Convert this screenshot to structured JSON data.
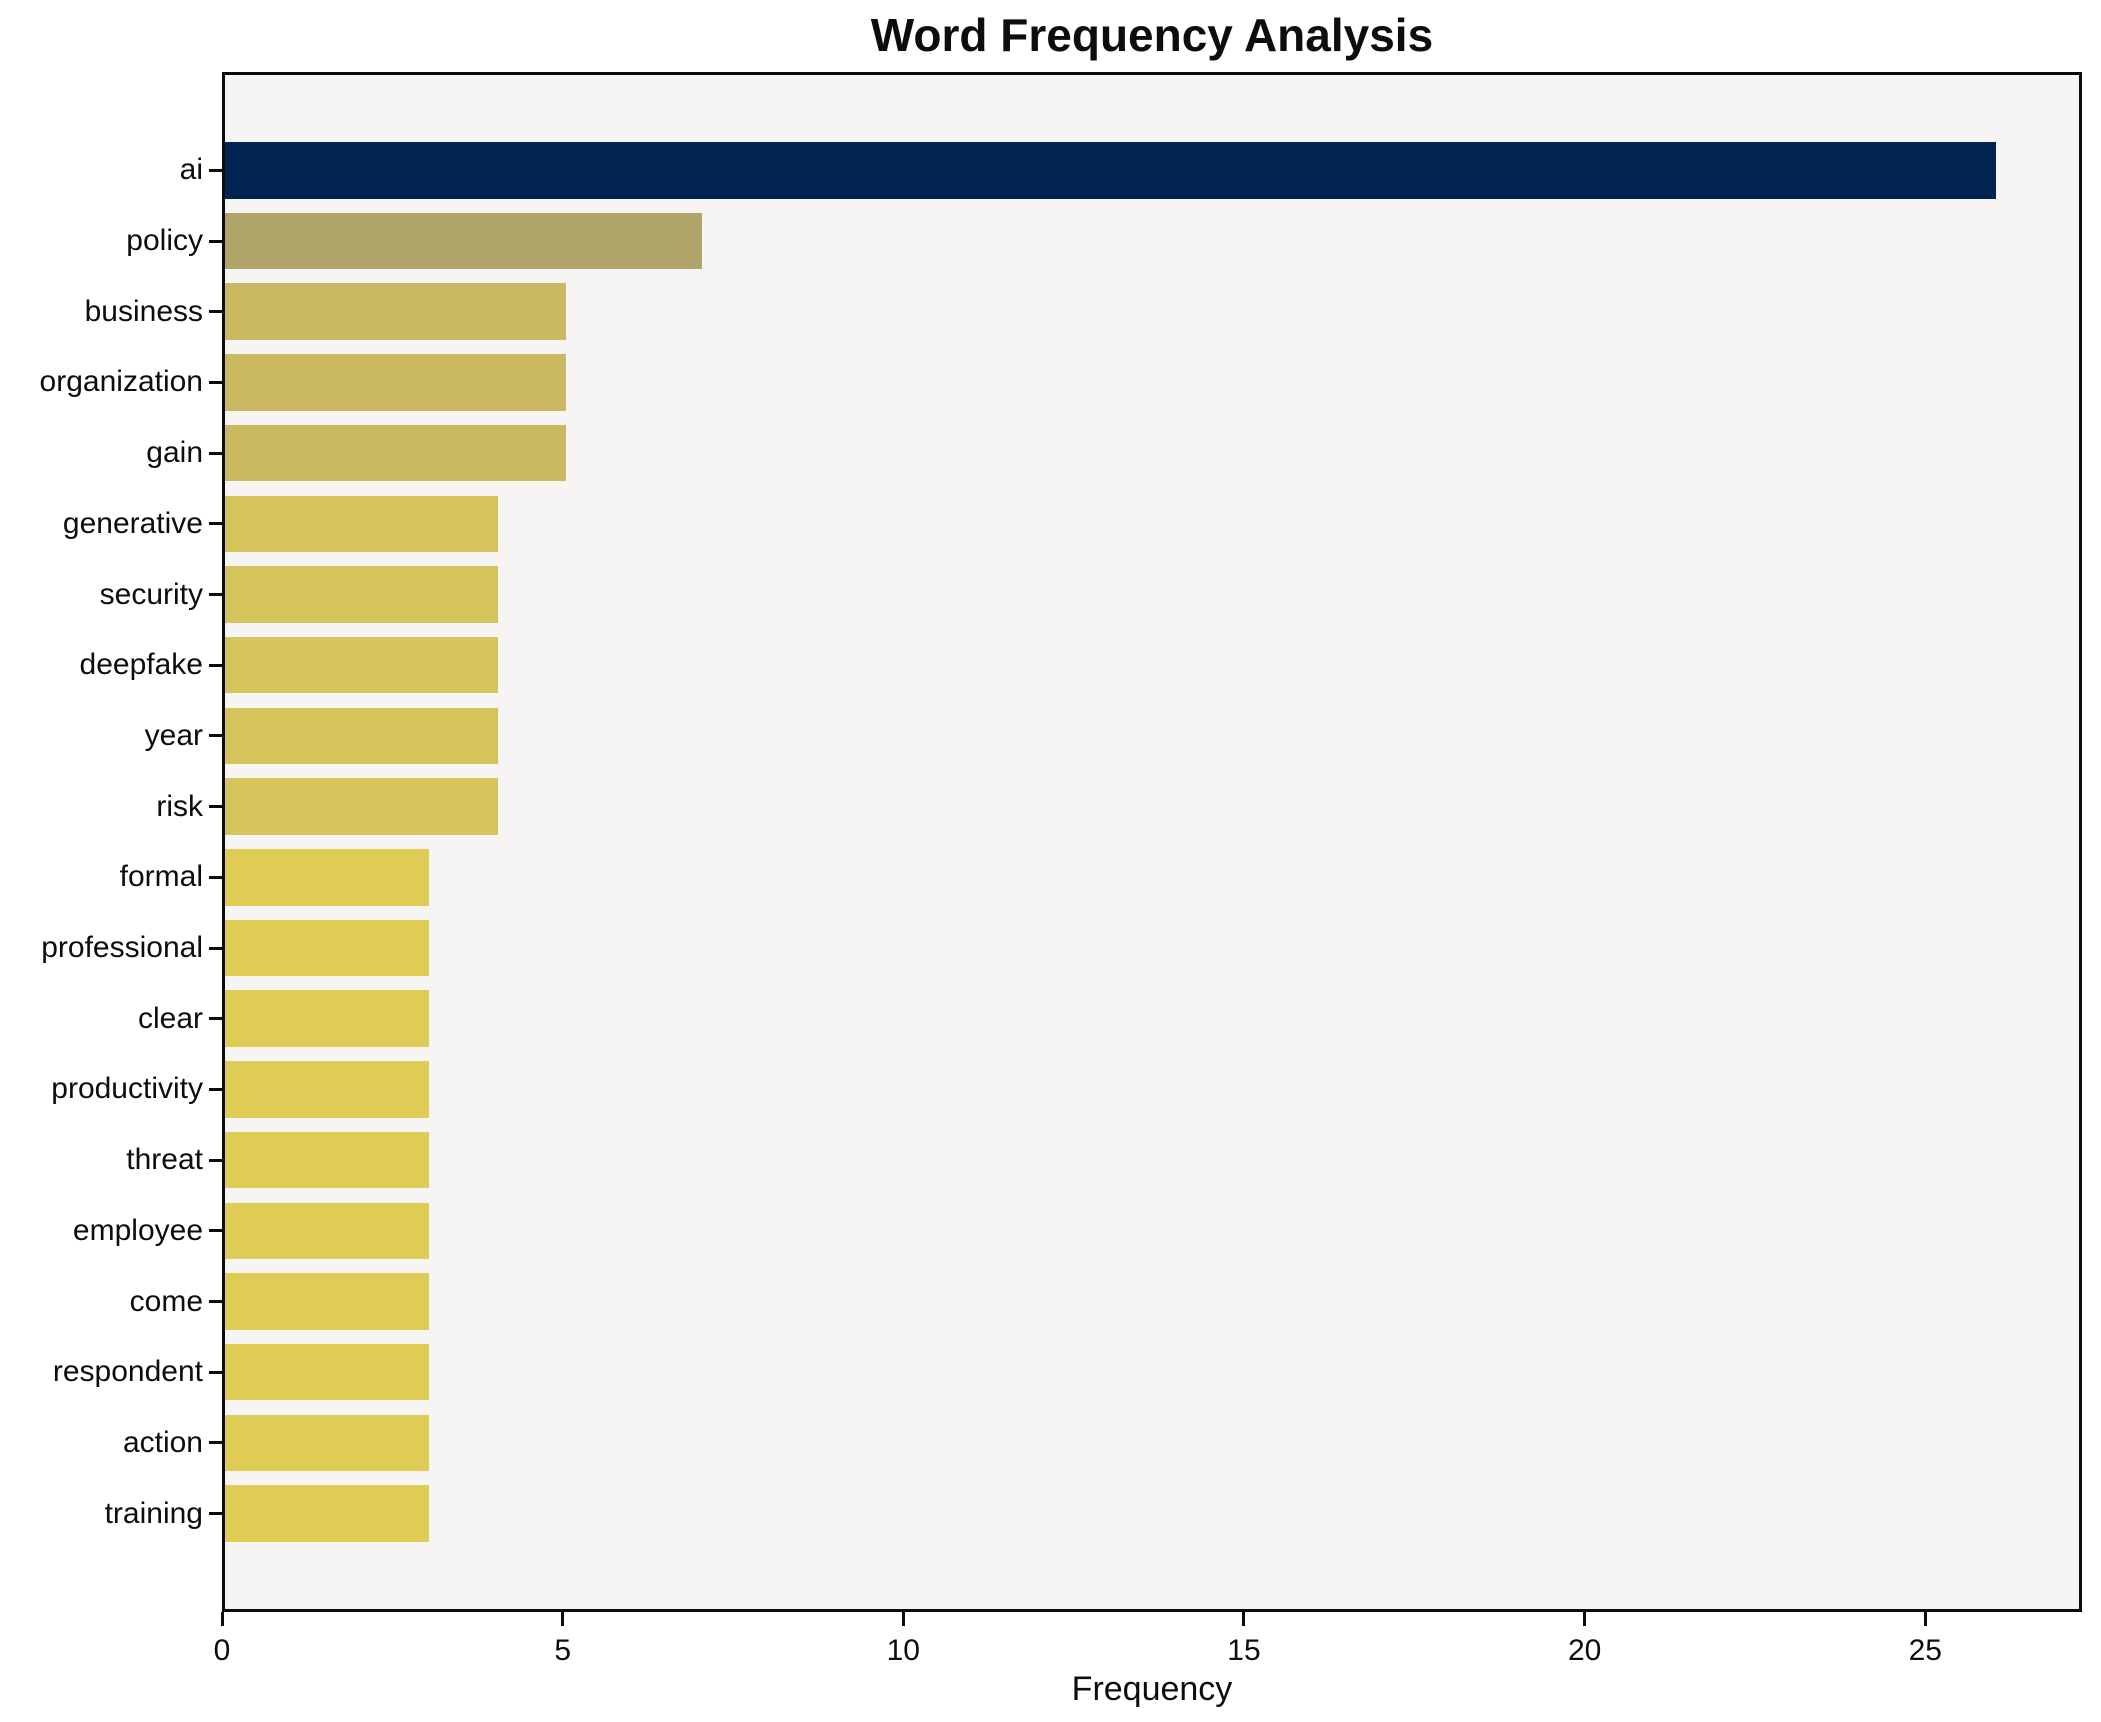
{
  "figure": {
    "background": "#ffffff",
    "plot_background": "#f6f5f3",
    "spine_color": "#0c0c0c",
    "text_color": "#0d0d0d"
  },
  "chart_data": {
    "type": "bar",
    "orientation": "horizontal",
    "title": "Word Frequency Analysis",
    "xlabel": "Frequency",
    "ylabel": "",
    "categories": [
      "ai",
      "policy",
      "business",
      "organization",
      "gain",
      "generative",
      "security",
      "deepfake",
      "year",
      "risk",
      "formal",
      "professional",
      "clear",
      "productivity",
      "threat",
      "employee",
      "come",
      "respondent",
      "action",
      "training"
    ],
    "values": [
      26,
      7,
      5,
      5,
      5,
      4,
      4,
      4,
      4,
      4,
      3,
      3,
      3,
      3,
      3,
      3,
      3,
      3,
      3,
      3
    ],
    "bar_colors": [
      "#00234f",
      "#b1a468",
      "#cbb961",
      "#cbb961",
      "#cbb961",
      "#d5c45c",
      "#d5c45c",
      "#d5c45c",
      "#d5c45c",
      "#d5c45c",
      "#decc55",
      "#decc55",
      "#decc55",
      "#decc55",
      "#decc55",
      "#decc55",
      "#decc55",
      "#decc55",
      "#decc55",
      "#decc55"
    ],
    "x_ticks": [
      0,
      5,
      10,
      15,
      20,
      25
    ],
    "xlim": [
      0,
      27.3
    ],
    "grid": false,
    "legend": false
  }
}
